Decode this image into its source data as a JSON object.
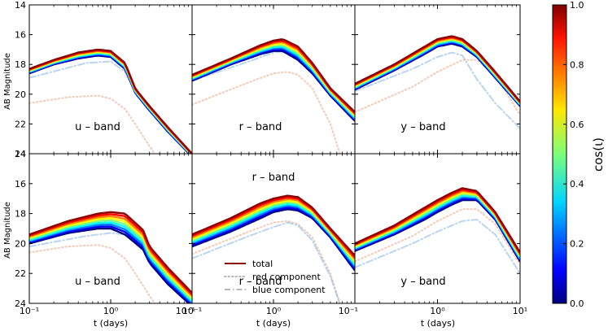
{
  "figure": {
    "ylabel": "AB Magnitude",
    "xlabel": "t (days)",
    "colorbar": {
      "label": "cos(ι)",
      "ticks": [
        "0.0",
        "0.2",
        "0.4",
        "0.6",
        "0.8",
        "1.0"
      ],
      "range": [
        0.0,
        1.0
      ],
      "colormap": "jet"
    },
    "legend": {
      "items": [
        {
          "label": "total",
          "style": "solid",
          "color": "#8b0000"
        },
        {
          "label": "red component",
          "style": "dotted",
          "color": "#b8b8b8"
        },
        {
          "label": "blue component",
          "style": "dashdot",
          "color": "#b8b8b8"
        }
      ]
    }
  },
  "chart_data": [
    {
      "type": "line",
      "panel": "top-left",
      "band_label": "u – band",
      "xscale": "log",
      "xlim": [
        0.1,
        10
      ],
      "ylim": [
        24,
        14
      ],
      "yticks": [
        14,
        16,
        18,
        20,
        22,
        24
      ],
      "xticks": [
        "10⁻¹",
        "10⁰",
        "10⁻¹"
      ],
      "total_curve": {
        "x": [
          0.1,
          0.2,
          0.4,
          0.7,
          1.0,
          1.5,
          2.0,
          2.2,
          3.0,
          5.0,
          10.0
        ],
        "y_face_on": [
          18.3,
          17.7,
          17.2,
          17.0,
          17.1,
          17.9,
          19.6,
          19.9,
          20.8,
          22.2,
          24.0
        ],
        "y_edge_on": [
          18.6,
          18.0,
          17.6,
          17.4,
          17.5,
          18.3,
          19.9,
          20.2,
          21.1,
          22.5,
          24.2
        ]
      },
      "red_component": {
        "x": [
          0.1,
          0.3,
          0.7,
          1.0,
          1.5,
          2.0,
          3.0,
          4.0
        ],
        "y": [
          20.6,
          20.2,
          20.1,
          20.3,
          21.0,
          22.0,
          23.5,
          24.5
        ]
      },
      "blue_component": {
        "x": [
          0.1,
          0.5,
          1.0,
          1.5,
          2.0,
          3.0,
          5.0,
          10.0
        ],
        "y": [
          18.9,
          17.9,
          17.8,
          18.5,
          19.8,
          21.0,
          22.3,
          24.2
        ]
      }
    },
    {
      "type": "line",
      "panel": "top-middle",
      "band_label": "r – band",
      "xscale": "log",
      "xlim": [
        0.1,
        10
      ],
      "ylim": [
        24,
        14
      ],
      "xticks": [
        "10⁻¹",
        "10⁰",
        "10⁻¹"
      ],
      "total_curve": {
        "x": [
          0.1,
          0.3,
          0.7,
          1.0,
          1.3,
          2.0,
          3.0,
          5.0,
          10.0
        ],
        "y_face_on": [
          18.7,
          17.6,
          16.7,
          16.4,
          16.3,
          16.8,
          17.9,
          19.6,
          21.2
        ],
        "y_edge_on": [
          19.1,
          18.0,
          17.3,
          17.1,
          17.1,
          17.7,
          18.6,
          20.1,
          21.8
        ]
      },
      "red_component": {
        "x": [
          0.1,
          0.5,
          1.0,
          1.5,
          2.0,
          3.0,
          5.0,
          7.0
        ],
        "y": [
          20.7,
          19.2,
          18.6,
          18.5,
          18.7,
          19.6,
          22.0,
          24.5
        ]
      },
      "blue_component": {
        "x": [
          0.1,
          0.5,
          1.0,
          1.5,
          2.0,
          3.0,
          5.0,
          10.0
        ],
        "y": [
          19.1,
          17.8,
          17.2,
          17.1,
          17.6,
          18.6,
          20.1,
          21.8
        ]
      }
    },
    {
      "type": "line",
      "panel": "top-right",
      "band_label": "y – band",
      "xscale": "log",
      "xlim": [
        0.1,
        10
      ],
      "ylim": [
        24,
        14
      ],
      "xticks": [
        "10⁰",
        "10¹"
      ],
      "total_curve": {
        "x": [
          0.1,
          0.3,
          0.7,
          1.0,
          1.5,
          2.0,
          3.0,
          5.0,
          10.0
        ],
        "y_face_on": [
          19.3,
          18.0,
          16.8,
          16.3,
          16.1,
          16.3,
          17.1,
          18.5,
          20.5
        ],
        "y_edge_on": [
          19.7,
          18.4,
          17.3,
          16.8,
          16.6,
          16.8,
          17.5,
          18.9,
          20.8
        ]
      },
      "red_component": {
        "x": [
          0.1,
          0.5,
          1.0,
          2.0,
          3.0,
          5.0,
          10.0
        ],
        "y": [
          21.2,
          19.5,
          18.5,
          17.7,
          17.7,
          18.7,
          21.4
        ]
      },
      "blue_component": {
        "x": [
          0.1,
          0.5,
          1.0,
          1.5,
          2.0,
          3.0,
          5.0,
          10.0
        ],
        "y": [
          19.8,
          18.3,
          17.5,
          17.2,
          17.4,
          19.0,
          20.6,
          22.3
        ]
      }
    },
    {
      "type": "line",
      "panel": "bottom-left",
      "band_label": "u – band",
      "xscale": "log",
      "xlim": [
        0.1,
        10
      ],
      "ylim": [
        24,
        14
      ],
      "yticks": [
        14,
        16,
        18,
        20,
        22,
        24
      ],
      "xticks": [
        "10⁻¹",
        "10⁰",
        "10⁻¹"
      ],
      "total_curve": {
        "x": [
          0.1,
          0.3,
          0.7,
          1.0,
          1.5,
          2.5,
          3.0,
          5.0,
          10.0
        ],
        "y_face_on": [
          19.4,
          18.5,
          18.0,
          17.9,
          18.0,
          19.1,
          20.2,
          21.6,
          23.3
        ],
        "y_edge_on": [
          20.0,
          19.3,
          19.0,
          19.0,
          19.4,
          20.4,
          21.3,
          22.7,
          24.2
        ]
      },
      "red_component": {
        "x": [
          0.1,
          0.3,
          0.7,
          1.0,
          1.5,
          2.0,
          3.0,
          4.0
        ],
        "y": [
          20.6,
          20.2,
          20.1,
          20.3,
          21.0,
          22.0,
          23.5,
          24.5
        ]
      },
      "blue_component": {
        "x": [
          0.1,
          0.5,
          1.0,
          1.5,
          2.0,
          3.0
        ],
        "y": [
          20.2,
          19.5,
          19.3,
          19.4,
          19.8,
          20.5
        ]
      }
    },
    {
      "type": "line",
      "panel": "bottom-middle",
      "band_label": "r – band",
      "xscale": "log",
      "xlim": [
        0.1,
        10
      ],
      "ylim": [
        24,
        14
      ],
      "xticks": [
        "10⁻¹",
        "10⁰",
        "10⁻¹"
      ],
      "total_curve": {
        "x": [
          0.1,
          0.3,
          0.7,
          1.0,
          1.5,
          2.0,
          3.0,
          5.0,
          10.0
        ],
        "y_face_on": [
          19.4,
          18.3,
          17.3,
          17.0,
          16.8,
          16.9,
          17.6,
          19.0,
          20.8
        ],
        "y_edge_on": [
          20.2,
          19.2,
          18.3,
          17.9,
          17.7,
          17.8,
          18.3,
          19.6,
          21.8
        ]
      },
      "red_component": {
        "x": [
          0.1,
          0.5,
          1.0,
          1.5,
          2.0,
          3.0,
          5.0,
          7.0
        ],
        "y": [
          20.7,
          19.2,
          18.6,
          18.5,
          18.7,
          19.6,
          22.0,
          24.5
        ]
      },
      "blue_component": {
        "x": [
          0.1,
          0.5,
          1.0,
          1.5,
          2.0,
          3.0,
          5.0,
          7.0
        ],
        "y": [
          21.0,
          19.5,
          18.9,
          18.6,
          18.8,
          19.8,
          22.2,
          24.5
        ]
      }
    },
    {
      "type": "line",
      "panel": "bottom-right",
      "band_label": "y – band",
      "xscale": "log",
      "xlim": [
        0.1,
        10
      ],
      "ylim": [
        24,
        14
      ],
      "xticks": [
        "10⁰",
        "10¹"
      ],
      "total_curve": {
        "x": [
          0.1,
          0.3,
          0.7,
          1.0,
          1.5,
          2.0,
          3.0,
          5.0,
          10.0
        ],
        "y_face_on": [
          20.0,
          18.8,
          17.6,
          17.1,
          16.6,
          16.3,
          16.5,
          17.9,
          20.6
        ],
        "y_edge_on": [
          20.5,
          19.4,
          18.4,
          17.9,
          17.4,
          17.1,
          17.1,
          18.4,
          21.2
        ]
      },
      "red_component": {
        "x": [
          0.1,
          0.5,
          1.0,
          2.0,
          3.0,
          5.0,
          10.0
        ],
        "y": [
          21.2,
          19.5,
          18.5,
          17.7,
          17.7,
          18.7,
          21.4
        ]
      },
      "blue_component": {
        "x": [
          0.1,
          0.5,
          1.0,
          2.0,
          3.0,
          5.0,
          10.0
        ],
        "y": [
          21.6,
          20.0,
          19.2,
          18.5,
          18.4,
          19.4,
          22.0
        ]
      }
    }
  ]
}
